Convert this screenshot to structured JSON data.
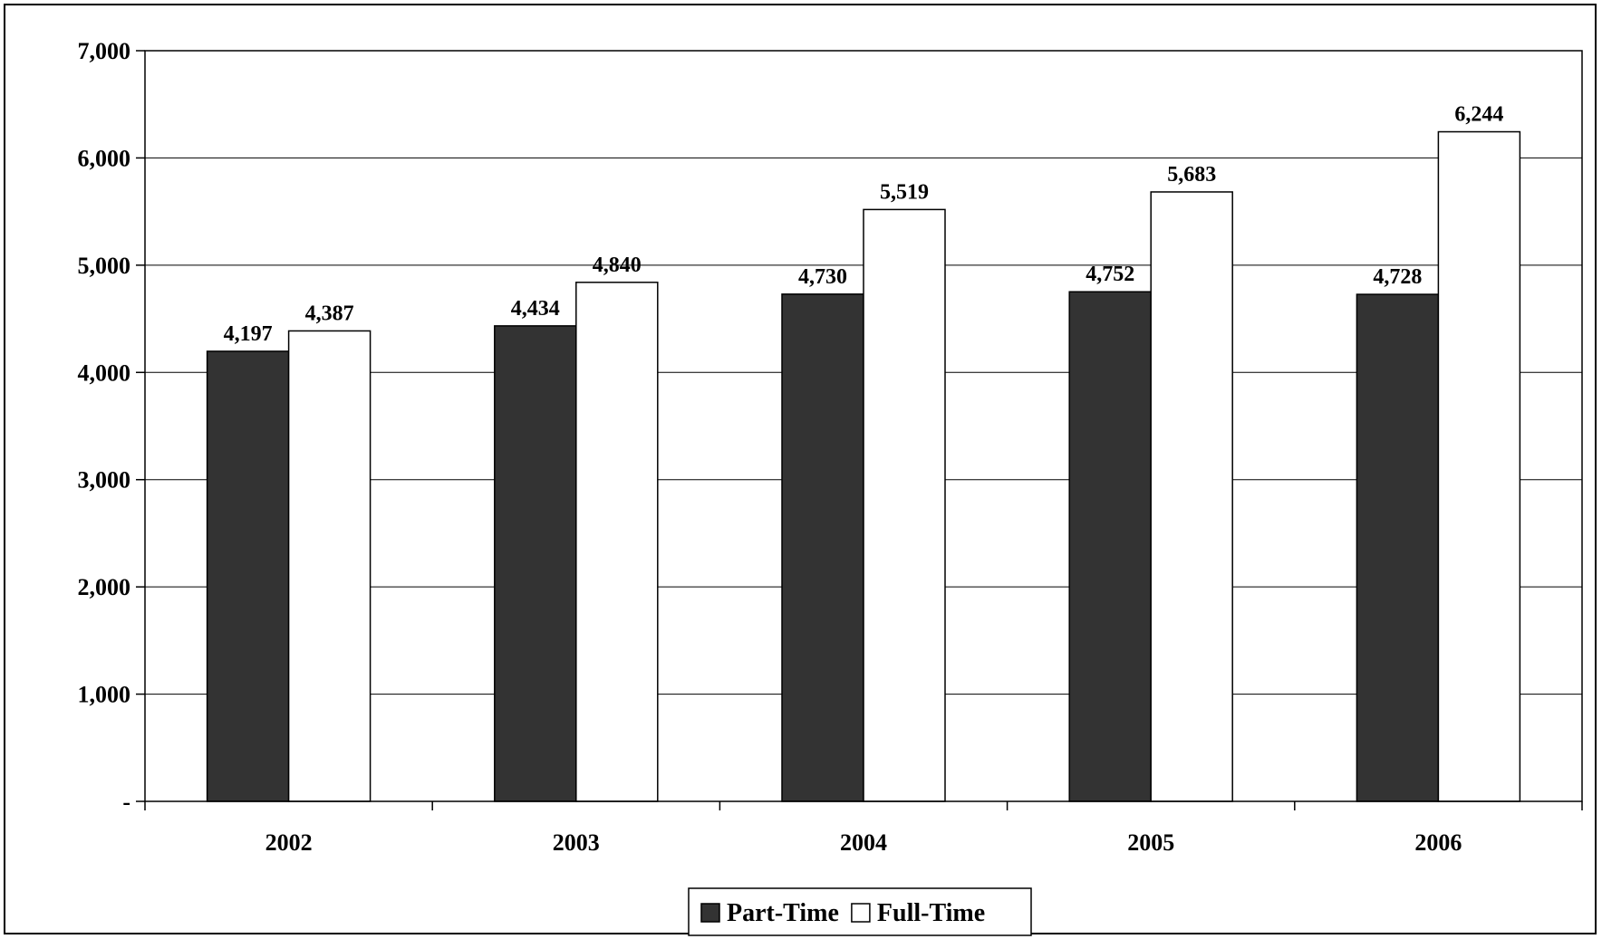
{
  "chart_data": {
    "type": "bar",
    "categories": [
      "2002",
      "2003",
      "2004",
      "2005",
      "2006"
    ],
    "series": [
      {
        "name": "Part-Time",
        "values": [
          4197,
          4434,
          4730,
          4752,
          4728
        ],
        "labels": [
          "4,197",
          "4,434",
          "4,730",
          "4,752",
          "4,728"
        ],
        "color": "#333333"
      },
      {
        "name": "Full-Time",
        "values": [
          4387,
          4840,
          5519,
          5683,
          6244
        ],
        "labels": [
          "4,387",
          "4,840",
          "5,519",
          "5,683",
          "6,244"
        ],
        "color": "#ffffff"
      }
    ],
    "y_ticks": [
      {
        "value": 0,
        "label": "-"
      },
      {
        "value": 1000,
        "label": "1,000"
      },
      {
        "value": 2000,
        "label": "2,000"
      },
      {
        "value": 3000,
        "label": "3,000"
      },
      {
        "value": 4000,
        "label": "4,000"
      },
      {
        "value": 5000,
        "label": "5,000"
      },
      {
        "value": 6000,
        "label": "6,000"
      },
      {
        "value": 7000,
        "label": "7,000"
      }
    ],
    "ylim": [
      0,
      7000
    ],
    "grid": true,
    "legend": "bottom-center"
  }
}
